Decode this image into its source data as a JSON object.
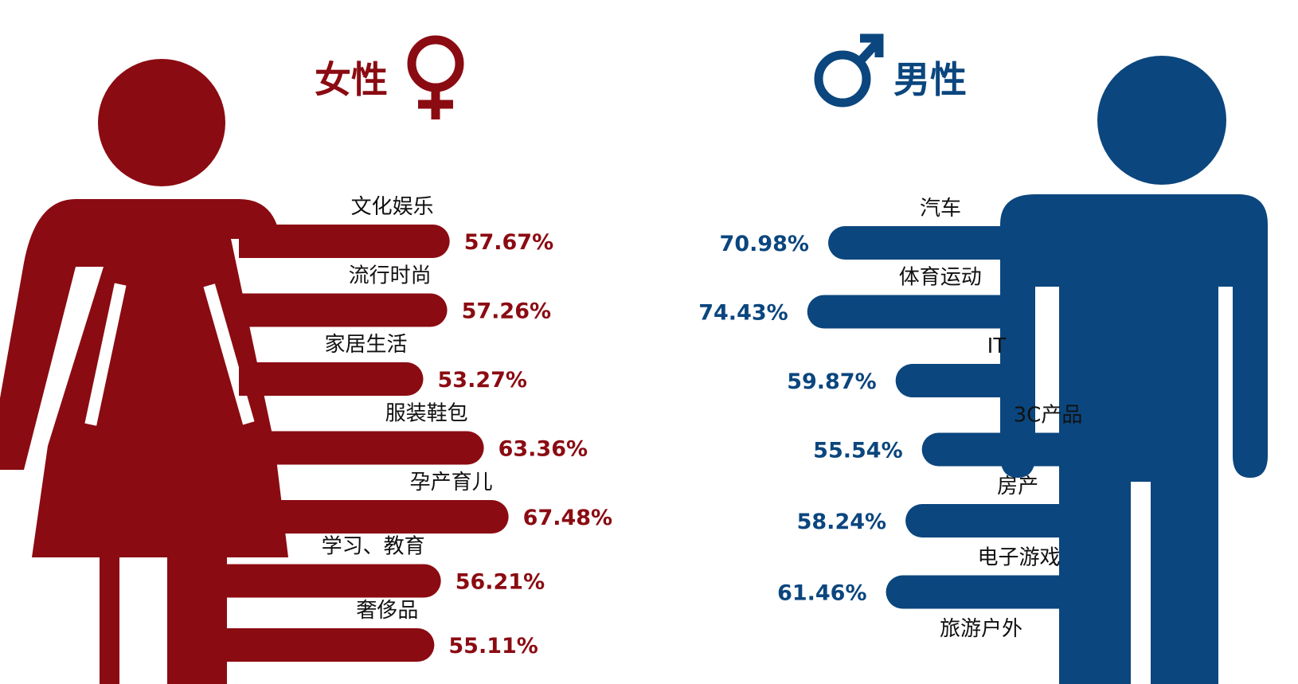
{
  "colors": {
    "female": "#8b0b12",
    "male": "#0b467e",
    "background": "#ffffff"
  },
  "chart_data": [
    {
      "type": "bar",
      "title": "女性",
      "categories": [
        "文化娱乐",
        "流行时尚",
        "家居生活",
        "服装鞋包",
        "孕产育儿",
        "学习、教育",
        "奢侈品"
      ],
      "values": [
        "57.67%",
        "57.26%",
        "53.27%",
        "63.36%",
        "67.48%",
        "56.21%",
        "55.11%"
      ],
      "numeric_values": [
        57.67,
        57.26,
        53.27,
        63.36,
        67.48,
        56.21,
        55.11
      ],
      "icon": "female-symbol-icon"
    },
    {
      "type": "bar",
      "title": "男性",
      "categories": [
        "汽车",
        "体育运动",
        "IT",
        "3C产品",
        "房产",
        "电子游戏",
        "旅游户外"
      ],
      "values": [
        "70.98%",
        "74.43%",
        "59.87%",
        "55.54%",
        "58.24%",
        "61.46%",
        ""
      ],
      "numeric_values": [
        70.98,
        74.43,
        59.87,
        55.54,
        58.24,
        61.46,
        null
      ],
      "icon": "male-symbol-icon"
    }
  ]
}
